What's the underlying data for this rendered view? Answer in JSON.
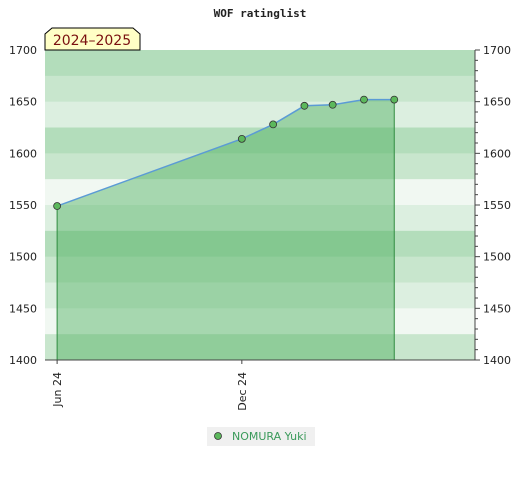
{
  "chart_data": {
    "type": "area",
    "title": "WOF ratinglist",
    "season_label": "2024–2025",
    "ylim": [
      1400,
      1700
    ],
    "y_ticks": [
      1400,
      1450,
      1500,
      1550,
      1600,
      1650,
      1700
    ],
    "x_range": [
      "2024-05-20",
      "2025-07-20"
    ],
    "x_ticks": [
      {
        "label": "Jun 24",
        "date": "2024-06-01"
      },
      {
        "label": "Dec 24",
        "date": "2024-12-01"
      }
    ],
    "series": [
      {
        "name": "NOMURA Yuki",
        "color": "#5b9bd5",
        "fill": "#4caf5e",
        "marker_color": "#5cb85c",
        "x": [
          "2024-06-01",
          "2024-12-01",
          "2025-01-01",
          "2025-02-01",
          "2025-03-01",
          "2025-04-01",
          "2025-05-01"
        ],
        "values": [
          1549,
          1614,
          1628,
          1646,
          1647,
          1652,
          1652
        ]
      }
    ]
  }
}
